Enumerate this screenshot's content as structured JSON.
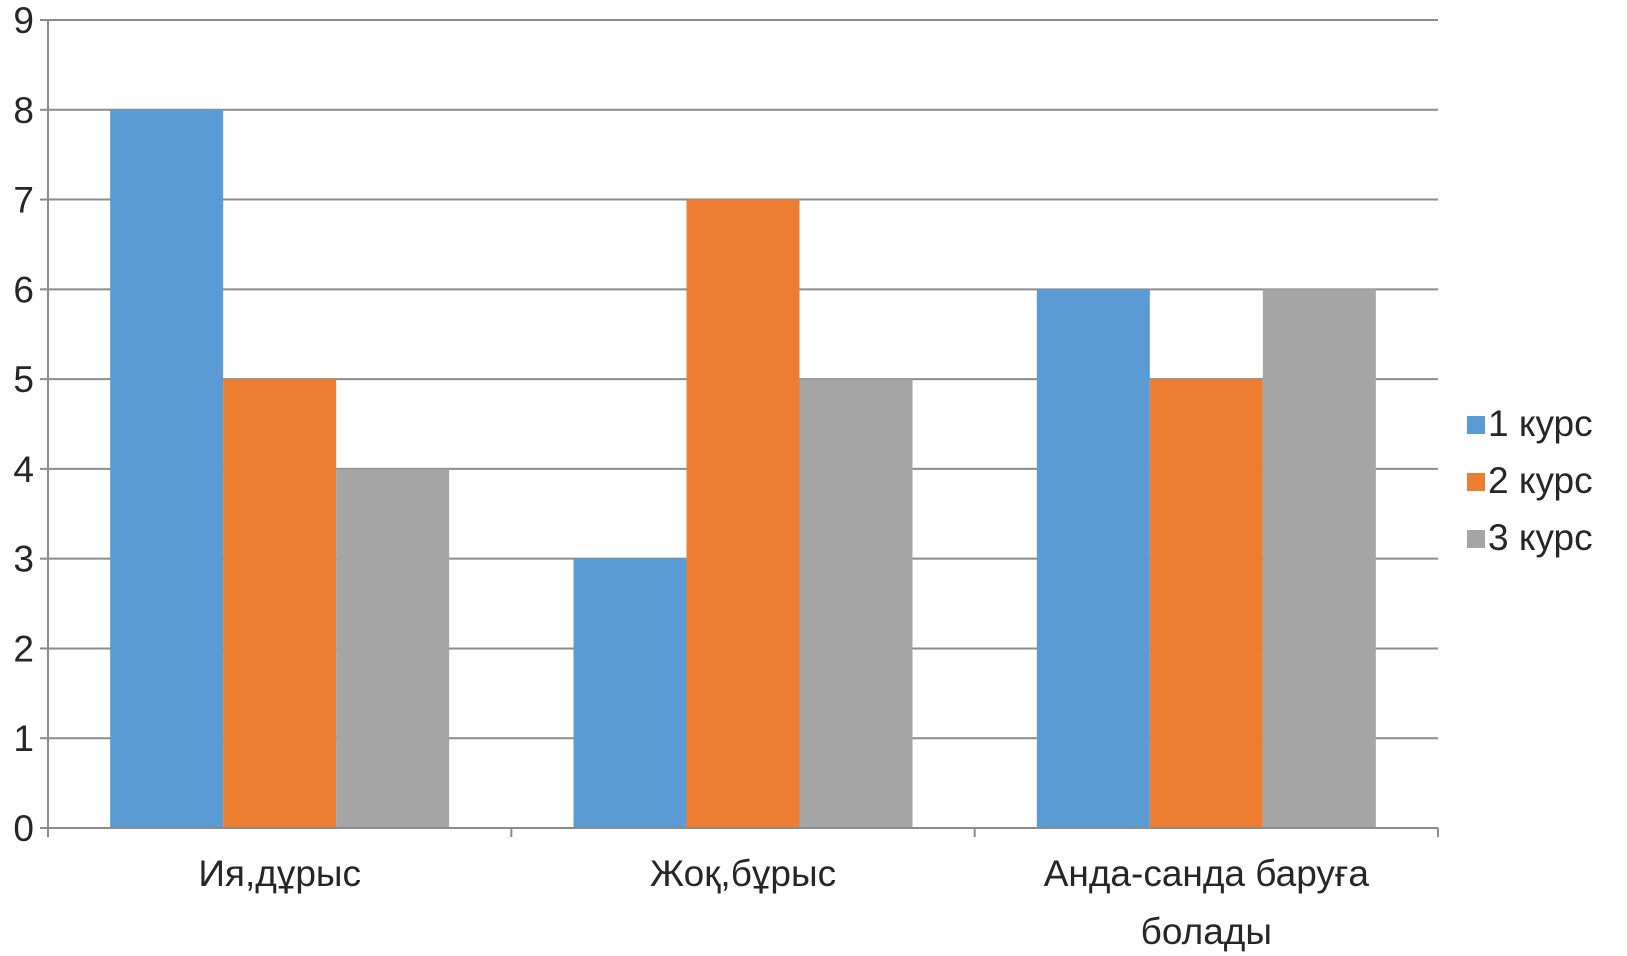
{
  "chart_data": {
    "type": "bar",
    "categories": [
      "Ия,дұрыс",
      "Жоқ,бұрыс",
      "Анда-санда баруға болады"
    ],
    "category_label_lines": [
      [
        "Ия,дұрыс"
      ],
      [
        "Жоқ,бұрыс"
      ],
      [
        "Анда-санда баруға",
        "болады"
      ]
    ],
    "series": [
      {
        "name": "1 курс",
        "values": [
          8,
          3,
          6
        ],
        "color": "#5b9bd5"
      },
      {
        "name": "2 курс",
        "values": [
          5,
          7,
          5
        ],
        "color": "#ed7d31"
      },
      {
        "name": "3 курс",
        "values": [
          4,
          5,
          6
        ],
        "color": "#a5a5a5"
      }
    ],
    "y_ticks": [
      "0",
      "1",
      "2",
      "3",
      "4",
      "5",
      "6",
      "7",
      "8",
      "9"
    ],
    "ylim": [
      0,
      9
    ],
    "grid": true,
    "legend_position": "right",
    "title": "",
    "xlabel": "",
    "ylabel": ""
  }
}
